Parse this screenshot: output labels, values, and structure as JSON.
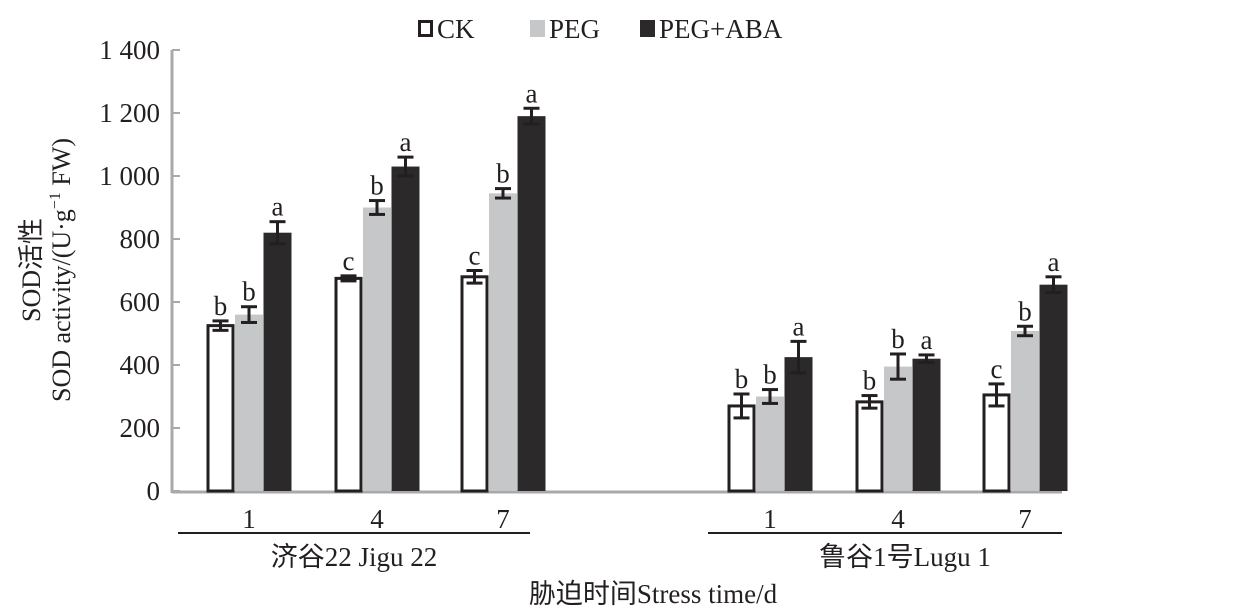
{
  "chart_data": {
    "type": "bar",
    "title": "",
    "xlabel": "胁迫时间Stress time/d",
    "ylabel_line1": "SOD活性",
    "ylabel_line2": "SOD activity/(U·g",
    "ylabel_sup": "−1",
    "ylabel_tail": " FW)",
    "ylim": [
      0,
      1400
    ],
    "yticks": [
      0,
      200,
      400,
      600,
      800,
      1000,
      1200,
      1400
    ],
    "ytick_labels": [
      "0",
      "200",
      "400",
      "600",
      "800",
      "1 000",
      "1 200",
      "1 400"
    ],
    "legend_position": "top-center",
    "groups": [
      {
        "name": "济谷22 Jigu 22",
        "categories": [
          "1",
          "4",
          "7"
        ]
      },
      {
        "name": "鲁谷1号Lugu 1",
        "categories": [
          "1",
          "4",
          "7"
        ]
      }
    ],
    "series": [
      {
        "name": "CK",
        "color": "#ffffff",
        "values": [
          525,
          675,
          680,
          270,
          283,
          305
        ],
        "errors": [
          15,
          8,
          20,
          38,
          20,
          35
        ],
        "letters": [
          "b",
          "c",
          "c",
          "b",
          "b",
          "c"
        ]
      },
      {
        "name": "PEG",
        "color": "#c6c7c9",
        "values": [
          560,
          900,
          945,
          300,
          395,
          508
        ],
        "errors": [
          25,
          22,
          15,
          22,
          40,
          15
        ],
        "letters": [
          "b",
          "b",
          "b",
          "b",
          "b",
          "b"
        ]
      },
      {
        "name": "PEG+ABA",
        "color": "#2b292a",
        "values": [
          820,
          1030,
          1190,
          425,
          420,
          655
        ],
        "errors": [
          35,
          30,
          25,
          50,
          12,
          25
        ],
        "letters": [
          "a",
          "a",
          "a",
          "a",
          "a",
          "a"
        ]
      }
    ]
  }
}
